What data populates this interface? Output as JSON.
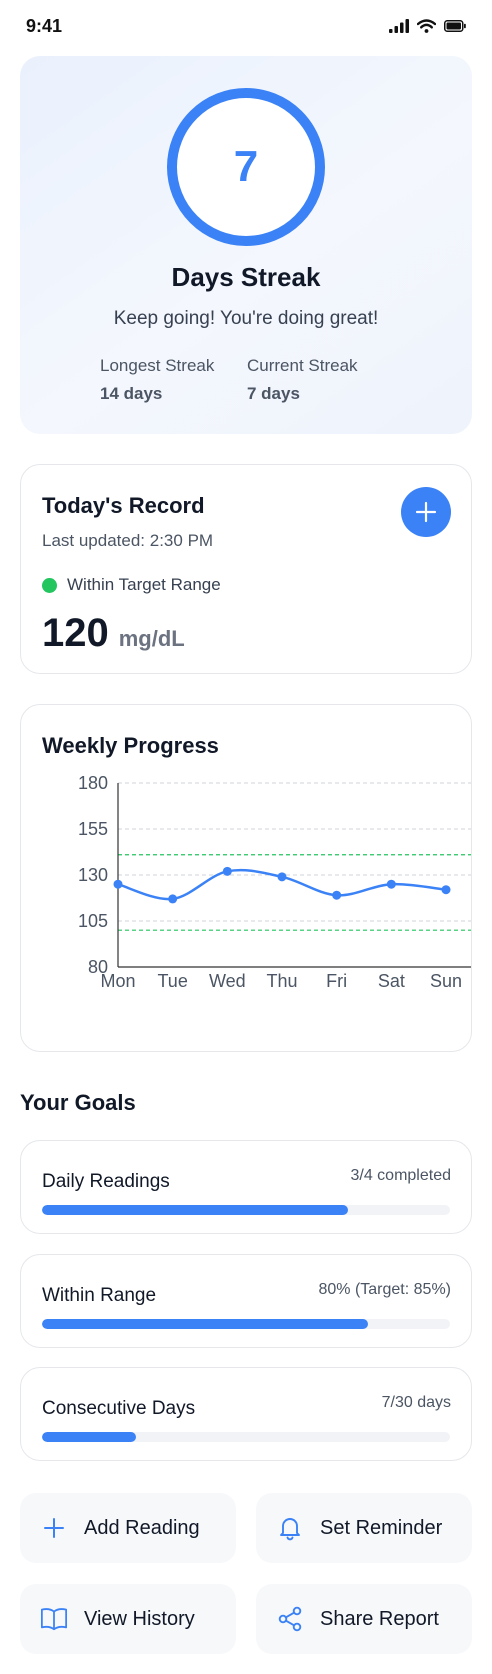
{
  "status_bar": {
    "time": "9:41"
  },
  "streak": {
    "number": "7",
    "title": "Days Streak",
    "subtitle": "Keep going! You're doing great!",
    "longest_label": "Longest Streak",
    "longest_value": "14 days",
    "current_label": "Current Streak",
    "current_value": "7 days",
    "accent": "#3b82f6"
  },
  "record": {
    "title": "Today's Record",
    "updated": "Last updated: 2:30 PM",
    "status": "Within Target Range",
    "status_color": "#22c55e",
    "value": "120",
    "unit": "mg/dL",
    "add_icon": "plus-icon"
  },
  "weekly": {
    "title": "Weekly Progress"
  },
  "chart_data": {
    "type": "line",
    "title": "Weekly Progress",
    "categories": [
      "Mon",
      "Tue",
      "Wed",
      "Thu",
      "Fri",
      "Sat",
      "Sun"
    ],
    "series": [
      {
        "values": [
          125,
          117,
          132,
          129,
          119,
          125,
          122
        ],
        "color": "#3b82f6"
      }
    ],
    "yticks": [
      "180",
      "155",
      "130",
      "105",
      "80"
    ],
    "ylim": [
      80,
      180
    ],
    "target_range": [
      100,
      141
    ],
    "target_color": "#22c55e",
    "grid": true
  },
  "goals": {
    "heading": "Your Goals",
    "items": [
      {
        "title": "Daily Readings",
        "meta": "3/4 completed",
        "progress": 0.75
      },
      {
        "title": "Within Range",
        "meta": "80% (Target: 85%)",
        "progress": 0.8
      },
      {
        "title": "Consecutive Days",
        "meta": "7/30 days",
        "progress": 0.23
      }
    ]
  },
  "actions": {
    "add_reading": "Add Reading",
    "set_reminder": "Set Reminder",
    "view_history": "View History",
    "share_report": "Share Report"
  }
}
